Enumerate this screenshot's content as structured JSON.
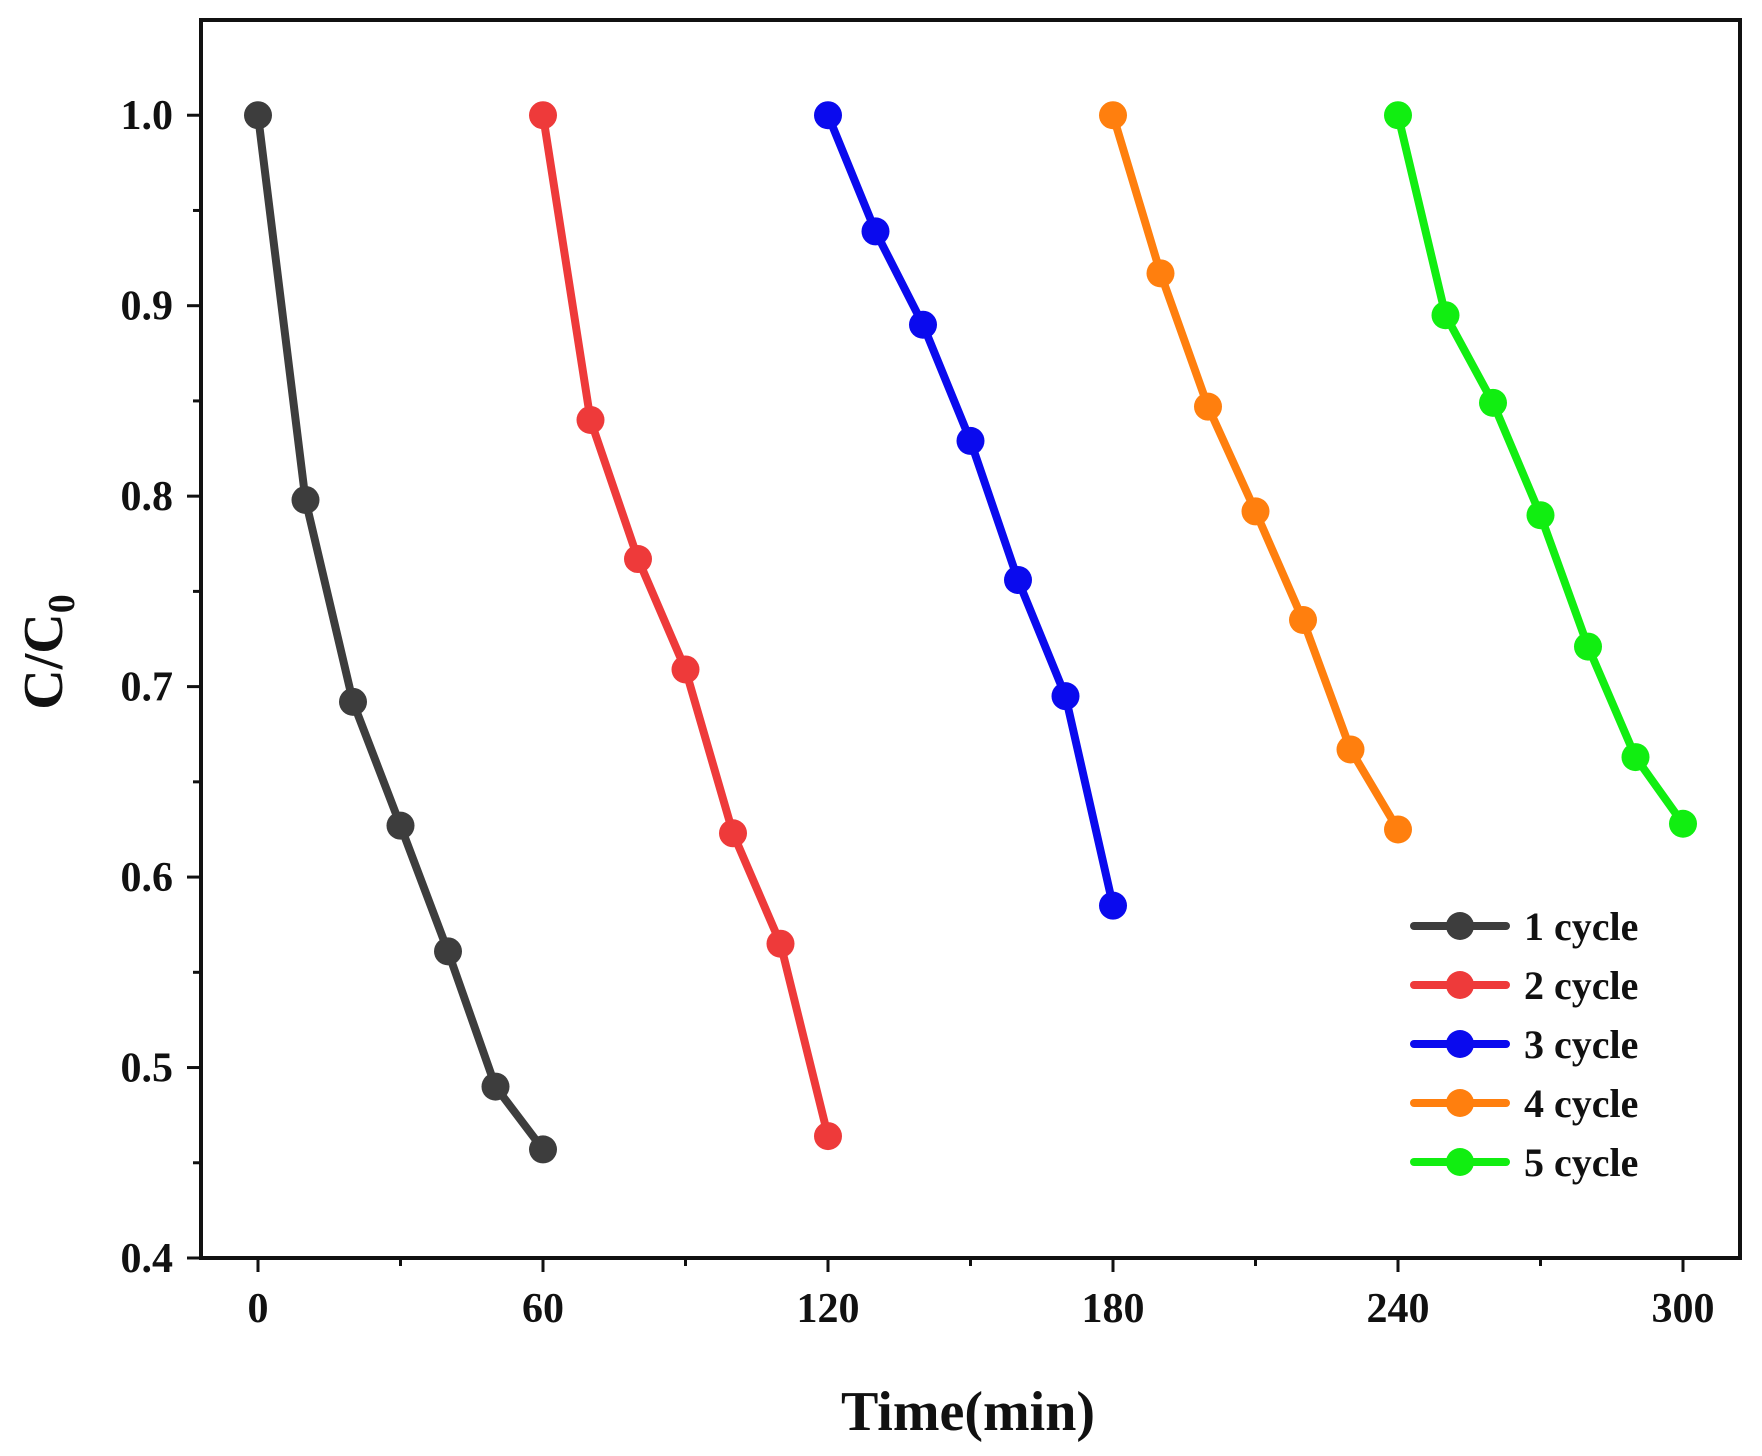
{
  "chart_data": {
    "type": "line",
    "xlabel": "Time(min)",
    "ylabel_main": "C/C",
    "ylabel_sub": "0",
    "xlim": [
      -12,
      312
    ],
    "ylim": [
      0.4,
      1.05
    ],
    "x_ticks": [
      0,
      60,
      120,
      180,
      240,
      300
    ],
    "x_minor_ticks": [
      30,
      90,
      150,
      210,
      270
    ],
    "y_ticks": [
      0.4,
      0.5,
      0.6,
      0.7,
      0.8,
      0.9,
      1.0
    ],
    "y_tick_labels": [
      "0.4",
      "0.5",
      "0.6",
      "0.7",
      "0.8",
      "0.9",
      "1.0"
    ],
    "y_minor_ticks": [
      0.45,
      0.55,
      0.65,
      0.75,
      0.85,
      0.95
    ],
    "grid": false,
    "legend_position": "lower-right",
    "series": [
      {
        "name": "1 cycle",
        "color": "#3d3d3d",
        "x": [
          0,
          10,
          20,
          30,
          40,
          50,
          60
        ],
        "y": [
          1.0,
          0.798,
          0.692,
          0.627,
          0.561,
          0.49,
          0.457
        ]
      },
      {
        "name": "2 cycle",
        "color": "#ee3a3a",
        "x": [
          60,
          70,
          80,
          90,
          100,
          110,
          120
        ],
        "y": [
          1.0,
          0.84,
          0.767,
          0.709,
          0.623,
          0.565,
          0.464
        ]
      },
      {
        "name": "3 cycle",
        "color": "#0a0aee",
        "x": [
          120,
          130,
          140,
          150,
          160,
          170,
          180
        ],
        "y": [
          1.0,
          0.939,
          0.89,
          0.829,
          0.756,
          0.695,
          0.585
        ]
      },
      {
        "name": "4 cycle",
        "color": "#ff7f0e",
        "x": [
          180,
          190,
          200,
          210,
          220,
          230,
          240
        ],
        "y": [
          1.0,
          0.917,
          0.847,
          0.792,
          0.735,
          0.667,
          0.625
        ]
      },
      {
        "name": "5 cycle",
        "color": "#11ee11",
        "x": [
          240,
          250,
          260,
          270,
          280,
          290,
          300
        ],
        "y": [
          1.0,
          0.895,
          0.849,
          0.79,
          0.721,
          0.663,
          0.628
        ]
      }
    ]
  }
}
